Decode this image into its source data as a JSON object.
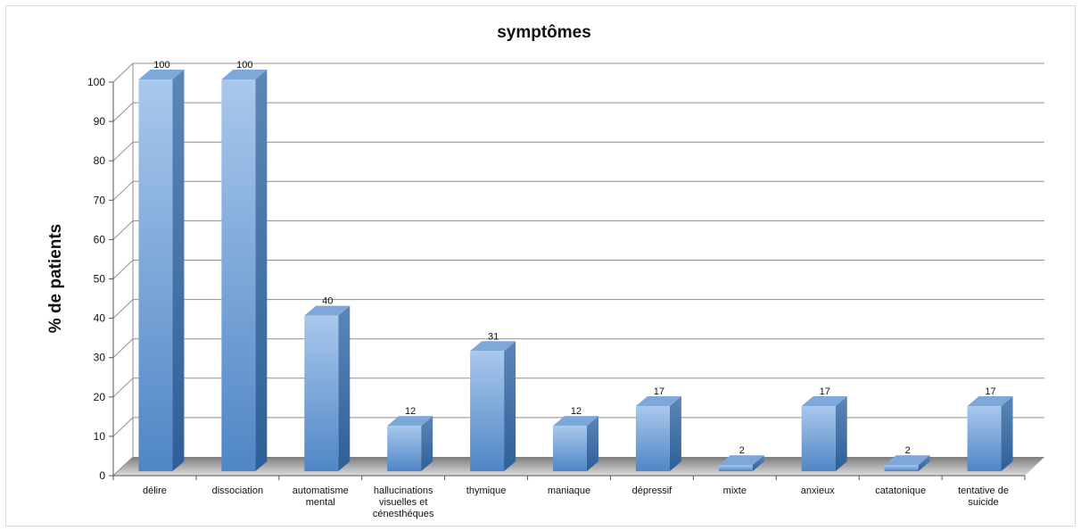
{
  "chart_data": {
    "type": "bar",
    "title": "symptômes",
    "xlabel": "",
    "ylabel": "% de patients",
    "ylim": [
      0,
      100
    ],
    "yticks": [
      0,
      10,
      20,
      30,
      40,
      50,
      60,
      70,
      80,
      90,
      100
    ],
    "grid": true,
    "style": "3d-column",
    "bar_color": "#5b9bd5",
    "categories": [
      [
        "délire"
      ],
      [
        "dissociation"
      ],
      [
        "automatisme",
        "mental"
      ],
      [
        "hallucinations",
        "visuelles et",
        "cénesthéques"
      ],
      [
        "thymique"
      ],
      [
        "maniaque"
      ],
      [
        "dépressif"
      ],
      [
        "mixte"
      ],
      [
        "anxieux"
      ],
      [
        "catatonique"
      ],
      [
        "tentative de",
        "suicide"
      ]
    ],
    "values": [
      100,
      100,
      40,
      12,
      31,
      12,
      17,
      2,
      17,
      2,
      17
    ]
  }
}
